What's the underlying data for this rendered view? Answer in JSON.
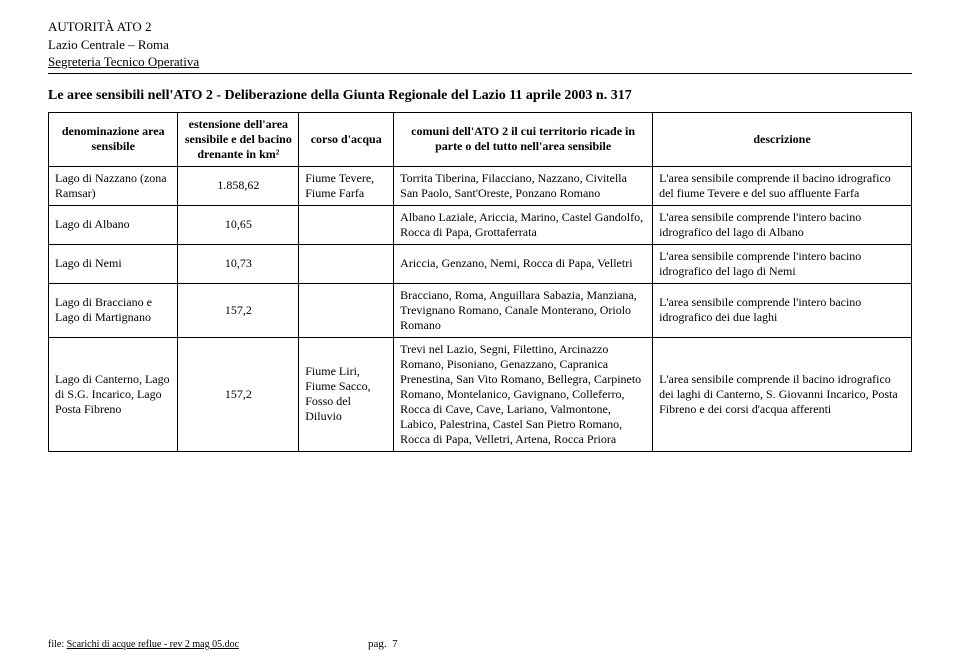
{
  "header": {
    "line1": "AUTORITÀ ATO 2",
    "line2": "Lazio Centrale – Roma",
    "line3": "Segreteria Tecnico Operativa"
  },
  "title": "Le aree sensibili nell'ATO 2 - Deliberazione della Giunta Regionale del Lazio 11 aprile 2003 n. 317",
  "table": {
    "headers": [
      "denominazione area sensibile",
      "estensione dell'area sensibile e del bacino drenante in km²",
      "corso d'acqua",
      "comuni dell'ATO 2 il cui territorio ricade in parte o del tutto nell'area sensibile",
      "descrizione"
    ],
    "rows": [
      {
        "c0": "Lago di Nazzano (zona Ramsar)",
        "c1": "1.858,62",
        "c2": "Fiume Tevere, Fiume Farfa",
        "c3": "Torrita Tiberina, Filacciano, Nazzano, Civitella San Paolo, Sant'Oreste, Ponzano Romano",
        "c4": "L'area sensibile comprende il bacino idrografico del fiume Tevere e del suo affluente Farfa"
      },
      {
        "c0": "Lago di Albano",
        "c1": "10,65",
        "c2": "",
        "c3": "Albano Laziale, Ariccia, Marino, Castel Gandolfo, Rocca di Papa, Grottaferrata",
        "c4": "L'area sensibile comprende l'intero bacino idrografico del lago di Albano"
      },
      {
        "c0": "Lago di Nemi",
        "c1": "10,73",
        "c2": "",
        "c3": "Ariccia, Genzano, Nemi, Rocca di Papa, Velletri",
        "c4": "L'area sensibile comprende l'intero bacino idrografico del lago di Nemi"
      },
      {
        "c0": "Lago di Bracciano e Lago di Martignano",
        "c1": "157,2",
        "c2": "",
        "c3": "Bracciano, Roma, Anguillara Sabazia, Manziana, Trevignano Romano, Canale Monterano, Oriolo Romano",
        "c4": "L'area sensibile comprende l'intero bacino idrografico dei due laghi"
      },
      {
        "c0": "Lago di Canterno, Lago di S.G. Incarico, Lago Posta Fibreno",
        "c1": "157,2",
        "c2": "Fiume Liri, Fiume Sacco, Fosso del Diluvio",
        "c3": "Trevi nel Lazio, Segni, Filettino, Arcinazzo Romano, Pisoniano, Genazzano, Capranica Prenestina, San Vito Romano, Bellegra, Carpineto Romano, Montelanico, Gavignano, Colleferro, Rocca di Cave, Cave, Lariano, Valmontone, Labico, Palestrina, Castel San Pietro Romano, Rocca di Papa, Velletri, Artena, Rocca Priora",
        "c4": "L'area sensibile comprende il bacino idrografico dei laghi di Canterno, S. Giovanni Incarico, Posta Fibreno e dei corsi d'acqua afferenti"
      }
    ]
  },
  "footer": {
    "prefix": "file: ",
    "filename": "Scarichi di acque reflue - rev 2 mag 05.doc",
    "page_label": "pag.",
    "page_number": "7"
  },
  "style": {
    "colwidths": [
      "15%",
      "14%",
      "11%",
      "30%",
      "30%"
    ],
    "background": "#ffffff",
    "text_color": "#000000",
    "border_color": "#000000"
  }
}
